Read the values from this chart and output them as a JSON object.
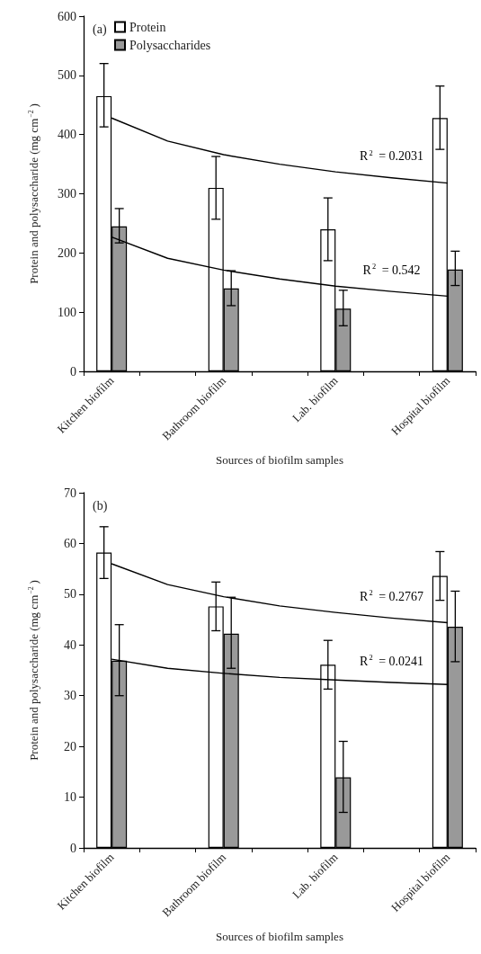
{
  "chart_data": [
    {
      "type": "bar",
      "title": "(a)",
      "xlabel": "Sources of biofilm samples",
      "ylabel": "Protein and polysaccharide (mg cm$^{−2}$)",
      "categories": [
        "Kitchen biofilm",
        null,
        "Bathroom biofilm",
        null,
        "Lab. biofilm",
        null,
        "Hospital biofilm"
      ],
      "series": [
        {
          "name": "Protein",
          "color": "#ffffff",
          "values": [
            465,
            null,
            310,
            null,
            240,
            null,
            428
          ],
          "errors": [
            [
              413,
              520
            ],
            null,
            [
              257,
              363
            ],
            null,
            [
              187,
              293
            ],
            null,
            [
              375,
              482
            ]
          ]
        },
        {
          "name": "Polysaccharides",
          "color": "#999999",
          "values": [
            245,
            null,
            140,
            null,
            106,
            null,
            172
          ],
          "errors": [
            [
              217,
              275
            ],
            null,
            [
              111,
              170
            ],
            null,
            [
              77,
              137
            ],
            null,
            [
              145,
              203
            ]
          ]
        },
        {
          "type": "line",
          "color": "#000000",
          "values": [
            428,
            389,
            366,
            350,
            337,
            327,
            318
          ]
        },
        {
          "type": "line",
          "color": "#000000",
          "values": [
            227,
            191,
            171,
            156,
            144,
            135,
            127
          ]
        }
      ],
      "annotations": [
        "R$^{2}$ = 0.2031",
        "R$^{2}$ = 0.542"
      ],
      "ylim": [
        0,
        600
      ],
      "yticks": [
        0,
        100,
        200,
        300,
        400,
        500,
        600
      ],
      "grid": false,
      "legend": "top left"
    },
    {
      "type": "bar",
      "title": "(b)",
      "xlabel": "Sources of biofilm samples",
      "ylabel": "Protein and polysaccharide (mg cm$^{−2}$)",
      "categories": [
        "Kitchen biofilm",
        null,
        "Bathroom biofilm",
        null,
        "Lab. biofilm",
        null,
        "Hospital biofilm"
      ],
      "series": [
        {
          "color": "#ffffff",
          "values": [
            58.2,
            null,
            47.6,
            null,
            36.1,
            null,
            53.6
          ],
          "errors": [
            [
              53.1,
              63.3
            ],
            null,
            [
              42.8,
              52.4
            ],
            null,
            [
              31.3,
              40.9
            ],
            null,
            [
              48.8,
              58.4
            ]
          ]
        },
        {
          "color": "#999999",
          "values": [
            36.9,
            null,
            42.2,
            null,
            13.9,
            null,
            43.6
          ],
          "errors": [
            [
              30,
              44
            ],
            null,
            [
              35.4,
              49.4
            ],
            null,
            [
              7,
              21
            ],
            null,
            [
              36.7,
              50.6
            ]
          ]
        },
        {
          "type": "line",
          "color": "#000000",
          "values": [
            56,
            51.9,
            49.5,
            47.7,
            46.4,
            45.3,
            44.4
          ]
        },
        {
          "type": "line",
          "color": "#000000",
          "values": [
            37.2,
            35.4,
            34.4,
            33.6,
            33.1,
            32.6,
            32.2
          ]
        }
      ],
      "annotations": [
        "R$^{2}$ = 0.2767",
        "R$^{2}$ = 0.0241"
      ],
      "ylim": [
        0,
        70
      ],
      "yticks": [
        0,
        10,
        20,
        30,
        40,
        50,
        60,
        70
      ],
      "grid": false,
      "legend": false
    }
  ]
}
